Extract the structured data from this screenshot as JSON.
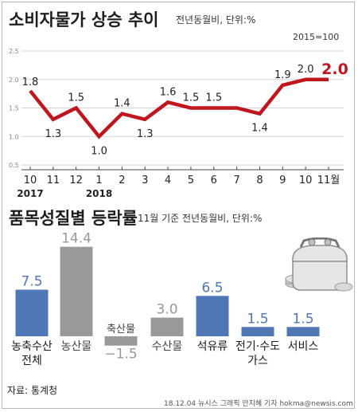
{
  "colors": {
    "line": "#c0161e",
    "blue": "#4f77b5",
    "gray": "#999999",
    "text": "#222222",
    "grid": "#d4d4d4"
  },
  "header": {
    "title": "소비자물가 상승 추이",
    "subtitle": "전년동월비, 단위:%",
    "base": "2015=100"
  },
  "chart_data": [
    {
      "type": "line",
      "title": "소비자물가 상승 추이",
      "subtitle": "전년동월비, 단위:%",
      "note": "2015=100",
      "x": [
        "10",
        "11",
        "12",
        "1",
        "2",
        "3",
        "4",
        "5",
        "6",
        "7",
        "8",
        "9",
        "10",
        "11"
      ],
      "x_suffix_last": "월",
      "year_labels": [
        {
          "index": 0,
          "label": "2017"
        },
        {
          "index": 3,
          "label": "2018"
        }
      ],
      "values": [
        1.8,
        1.3,
        1.5,
        1.0,
        1.4,
        1.3,
        1.6,
        1.5,
        1.5,
        1.5,
        1.4,
        1.9,
        2.0,
        2.0
      ],
      "value_labels": [
        "1.8",
        "1.3",
        "1.5",
        "1.0",
        "1.4",
        "1.3",
        "1.6",
        "1.5",
        "1.5",
        "",
        "1.4",
        "1.9",
        "2.0",
        "2.0"
      ],
      "yticks": [
        "0.5",
        "1.0",
        "1.5",
        "2.0",
        "2.5"
      ],
      "ylim": [
        0.5,
        2.5
      ],
      "grid": true
    },
    {
      "type": "bar",
      "title": "품목성질별 등락률",
      "subtitle": "11월 기준 전년동월비, 단위:%",
      "categories": [
        {
          "lines": [
            "농축수산",
            "전체"
          ]
        },
        {
          "lines": [
            "농산물"
          ]
        },
        {
          "lines": [
            "축산물"
          ]
        },
        {
          "lines": [
            "수산물"
          ]
        },
        {
          "lines": [
            "석유류"
          ]
        },
        {
          "lines": [
            "전기·수도",
            "가스"
          ]
        },
        {
          "lines": [
            "서비스"
          ]
        }
      ],
      "values": [
        7.5,
        14.4,
        -1.5,
        3.0,
        6.5,
        1.5,
        1.5
      ],
      "value_labels": [
        "7.5",
        "14.4",
        "−1.5",
        "3.0",
        "6.5",
        "1.5",
        "1.5"
      ],
      "colors": [
        "blue",
        "gray",
        "gray",
        "gray",
        "blue",
        "blue",
        "blue"
      ]
    }
  ],
  "footer": {
    "source": "자료: 통계청",
    "credit": "18.12.04 뉴시스 그래픽 안지혜 기자 hokma@newsis.com"
  }
}
